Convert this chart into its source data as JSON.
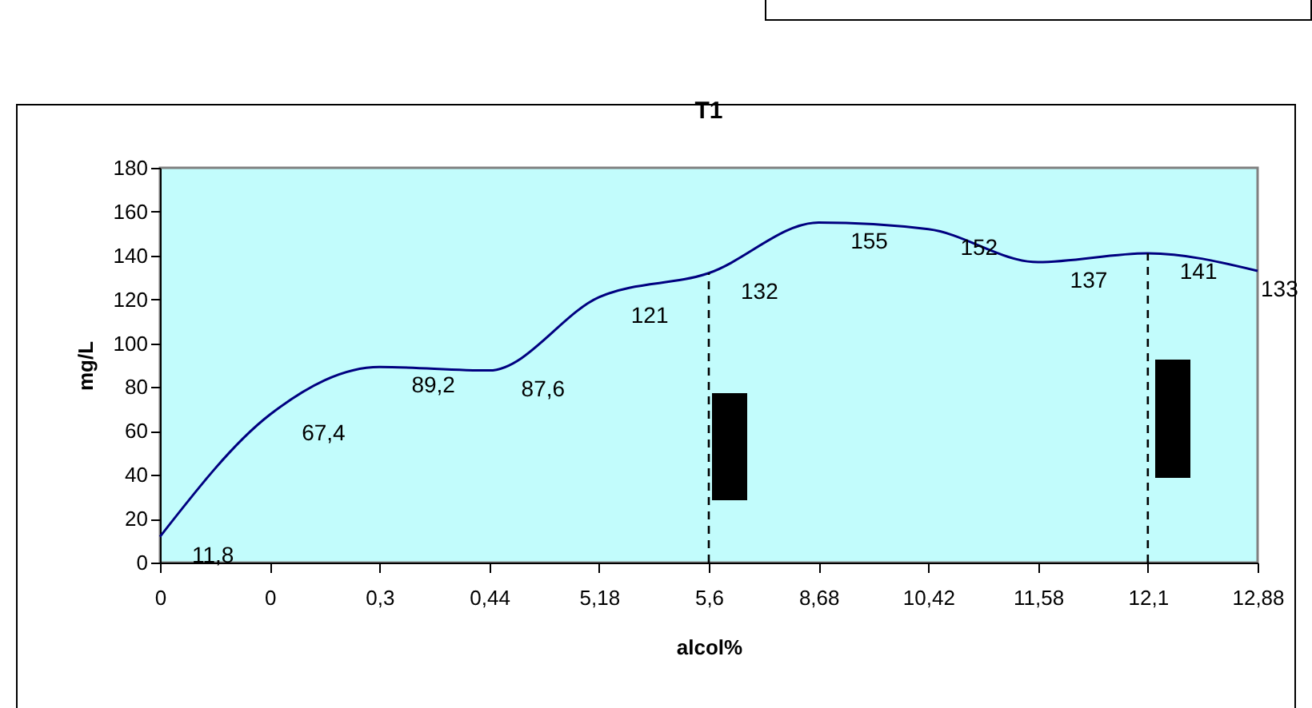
{
  "chart_data": {
    "type": "line",
    "title": "T1",
    "xlabel": "alcol%",
    "ylabel": "mg/L",
    "categories": [
      "0",
      "0",
      "0,3",
      "0,44",
      "5,18",
      "5,6",
      "8,68",
      "10,42",
      "11,58",
      "12,1",
      "12,88"
    ],
    "series": [
      {
        "color": "#000080",
        "values": [
          11.8,
          67.4,
          89.2,
          87.6,
          121,
          132,
          155,
          152,
          137,
          141,
          133
        ],
        "value_labels": [
          "11,8",
          "67,4",
          "89,2",
          "87,6",
          "121",
          "132",
          "155",
          "152",
          "137",
          "141",
          "133"
        ]
      }
    ],
    "ylim": [
      0,
      180
    ],
    "yticks": [
      0,
      20,
      40,
      60,
      80,
      100,
      120,
      140,
      160,
      180
    ],
    "ref_lines": [
      {
        "axis": "x",
        "value": "5,6",
        "line_style": "dashed",
        "color": "#000000"
      },
      {
        "axis": "x",
        "value": "12,1",
        "line_style": "dashed",
        "color": "#000000"
      }
    ],
    "marker": "none",
    "line_style": "solid"
  }
}
